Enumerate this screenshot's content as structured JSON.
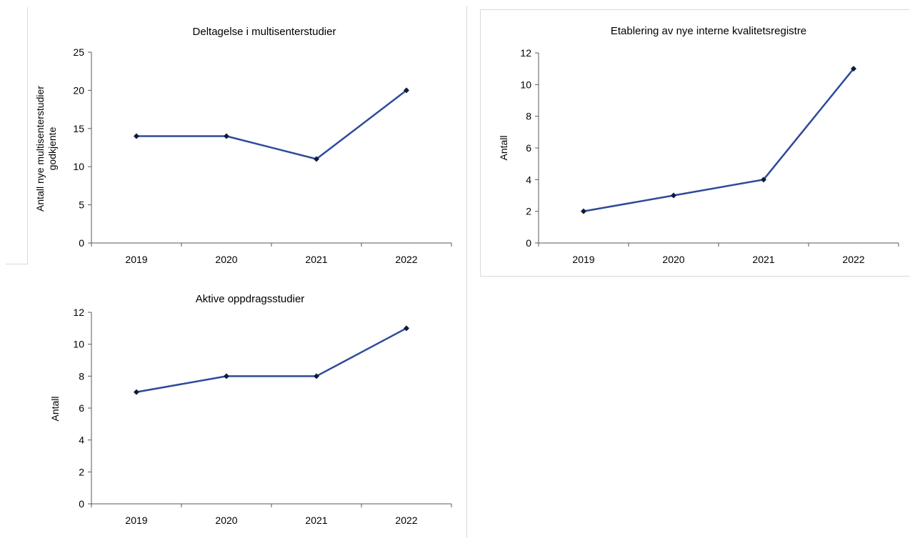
{
  "chart_data": [
    {
      "type": "line",
      "title": "Deltagelse i multisenterstudier",
      "xlabel": "",
      "ylabel_lines": [
        "Antall nye multisenterstudier",
        "godkjente"
      ],
      "categories": [
        "2019",
        "2020",
        "2021",
        "2022"
      ],
      "series": [
        {
          "values": [
            14,
            14,
            11,
            20
          ]
        }
      ],
      "ylim": [
        0,
        25
      ],
      "yticks": [
        0,
        5,
        10,
        15,
        20,
        25
      ],
      "grid": false,
      "line_color": "#2e4a9a",
      "marker_color": "#0d1b3e"
    },
    {
      "type": "line",
      "title": "Etablering av nye interne kvalitetsregistre",
      "xlabel": "",
      "ylabel_lines": [
        "Antall"
      ],
      "categories": [
        "2019",
        "2020",
        "2021",
        "2022"
      ],
      "series": [
        {
          "values": [
            2,
            3,
            4,
            11
          ]
        }
      ],
      "ylim": [
        0,
        12
      ],
      "yticks": [
        0,
        2,
        4,
        6,
        8,
        10,
        12
      ],
      "grid": false,
      "line_color": "#2e4a9a",
      "marker_color": "#0d1b3e"
    },
    {
      "type": "line",
      "title": "Aktive oppdragsstudier",
      "xlabel": "",
      "ylabel_lines": [
        "Antall"
      ],
      "categories": [
        "2019",
        "2020",
        "2021",
        "2022"
      ],
      "series": [
        {
          "values": [
            7,
            8,
            8,
            11
          ]
        }
      ],
      "ylim": [
        0,
        12
      ],
      "yticks": [
        0,
        2,
        4,
        6,
        8,
        10,
        12
      ],
      "grid": false,
      "line_color": "#2e4a9a",
      "marker_color": "#0d1b3e"
    }
  ]
}
